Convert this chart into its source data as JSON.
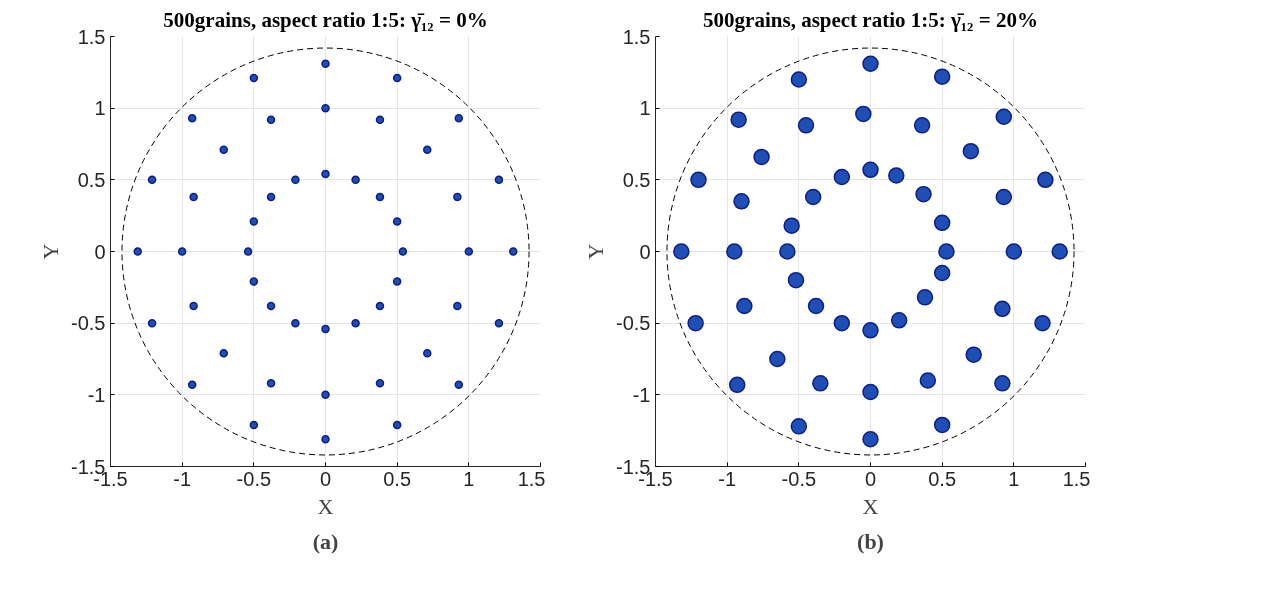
{
  "chart_data": [
    {
      "type": "scatter",
      "title": "500grains, aspect ratio 1:5: γ̄₁₂ = 0%",
      "xlabel": "X",
      "ylabel": "Y",
      "xlim": [
        -1.5,
        1.5
      ],
      "ylim": [
        -1.5,
        1.5
      ],
      "xticks": [
        -1.5,
        -1,
        -0.5,
        0,
        0.5,
        1,
        1.5
      ],
      "yticks": [
        -1.5,
        -1,
        -0.5,
        0,
        0.5,
        1,
        1.5
      ],
      "grid": true,
      "marker": "circle",
      "annotations": [
        "(a)"
      ],
      "series": [
        {
          "color": "#1f4fb4",
          "x": [
            1.31,
            1.21,
            0.93,
            0.5,
            0,
            -0.5,
            -0.93,
            -1.21,
            -1.31,
            -1.21,
            -0.93,
            -0.5,
            0,
            0.5,
            0.93,
            1.21
          ],
          "values": [
            0,
            0.5,
            0.93,
            1.21,
            1.31,
            1.21,
            0.93,
            0.5,
            0,
            -0.5,
            -0.93,
            -1.21,
            -1.31,
            -1.21,
            -0.93,
            -0.5
          ]
        },
        {
          "color": "#1f4fb4",
          "x": [
            1,
            0.92,
            0.71,
            0.38,
            0,
            -0.38,
            -0.71,
            -0.92,
            -1,
            -0.92,
            -0.71,
            -0.38,
            0,
            0.38,
            0.71,
            0.92
          ],
          "values": [
            0,
            0.38,
            0.71,
            0.92,
            1,
            0.92,
            0.71,
            0.38,
            0,
            -0.38,
            -0.71,
            -0.92,
            -1,
            -0.92,
            -0.71,
            -0.38
          ]
        },
        {
          "color": "#1f4fb4",
          "x": [
            0.54,
            0.5,
            0.38,
            0.21,
            0,
            -0.21,
            -0.38,
            -0.5,
            -0.54,
            -0.5,
            -0.38,
            -0.21,
            0,
            0.21,
            0.38,
            0.5
          ],
          "values": [
            0,
            0.21,
            0.38,
            0.5,
            0.54,
            0.5,
            0.38,
            0.21,
            0,
            -0.21,
            -0.38,
            -0.5,
            -0.54,
            -0.5,
            -0.38,
            -0.21
          ]
        }
      ]
    },
    {
      "type": "scatter",
      "title": "500grains, aspect ratio 1:5: γ̄₁₂ = 20%",
      "xlabel": "X",
      "ylabel": "Y",
      "xlim": [
        -1.5,
        1.5
      ],
      "ylim": [
        -1.5,
        1.5
      ],
      "xticks": [
        -1.5,
        -1,
        -0.5,
        0,
        0.5,
        1,
        1.5
      ],
      "yticks": [
        -1.5,
        -1,
        -0.5,
        0,
        0.5,
        1,
        1.5
      ],
      "grid": true,
      "marker": "circle",
      "annotations": [
        "(b)"
      ],
      "series": [
        {
          "color": "#1f4fb4",
          "x": [
            1.32,
            1.22,
            0.93,
            0.5,
            0,
            -0.5,
            -0.92,
            -1.2,
            -1.32,
            -1.22,
            -0.93,
            -0.5,
            0,
            0.5,
            0.92,
            1.2
          ],
          "values": [
            0,
            0.5,
            0.94,
            1.22,
            1.31,
            1.2,
            0.92,
            0.5,
            0,
            -0.5,
            -0.93,
            -1.22,
            -1.31,
            -1.21,
            -0.92,
            -0.5
          ]
        },
        {
          "color": "#1f4fb4",
          "x": [
            1.0,
            0.93,
            0.7,
            0.36,
            -0.05,
            -0.45,
            -0.76,
            -0.9,
            -0.95,
            -0.88,
            -0.65,
            -0.35,
            0,
            0.4,
            0.72,
            0.92
          ],
          "values": [
            0,
            0.38,
            0.7,
            0.88,
            0.96,
            0.88,
            0.66,
            0.35,
            0,
            -0.38,
            -0.75,
            -0.92,
            -0.98,
            -0.9,
            -0.72,
            -0.4
          ]
        },
        {
          "color": "#1f4fb4",
          "x": [
            0.53,
            0.5,
            0.37,
            0.18,
            0,
            -0.2,
            -0.4,
            -0.55,
            -0.58,
            -0.52,
            -0.38,
            -0.2,
            0,
            0.2,
            0.38,
            0.5
          ],
          "values": [
            0,
            0.2,
            0.4,
            0.53,
            0.57,
            0.52,
            0.38,
            0.18,
            0,
            -0.2,
            -0.38,
            -0.5,
            -0.55,
            -0.48,
            -0.32,
            -0.15
          ]
        }
      ]
    }
  ]
}
